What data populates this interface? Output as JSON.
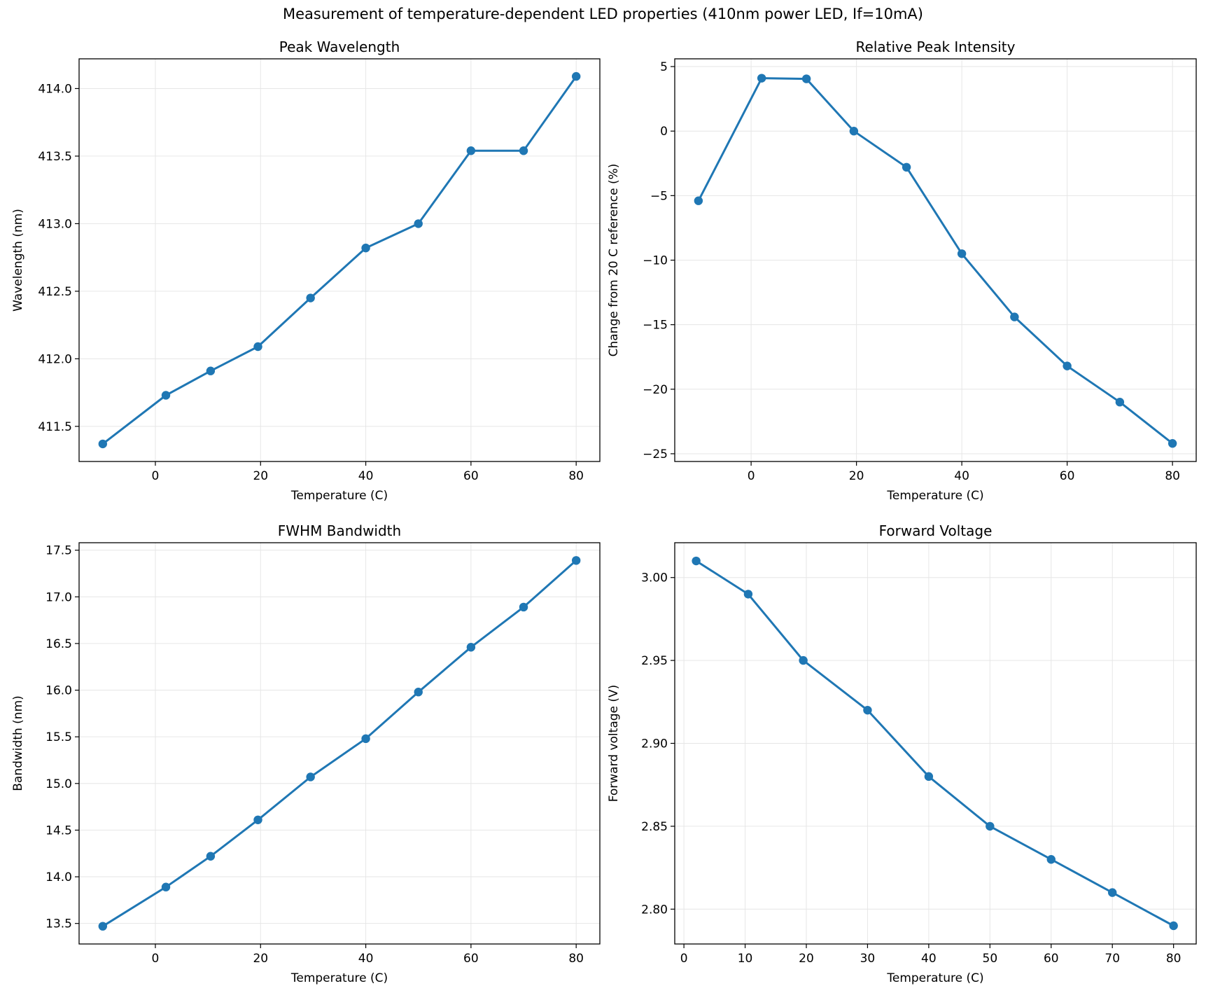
{
  "suptitle": "Measurement of temperature-dependent LED properties (410nm power LED, If=10mA)",
  "style": {
    "line_color": "#1f77b4",
    "grid_color": "#e6e6e6"
  },
  "chart_data": [
    {
      "id": "peak-wavelength",
      "type": "line",
      "title": "Peak Wavelength",
      "xlabel": "Temperature (C)",
      "ylabel": "Wavelength (nm)",
      "xlim": [
        -14.5,
        84.5
      ],
      "ylim": [
        411.24,
        414.22
      ],
      "xticks": [
        0,
        20,
        40,
        60,
        80
      ],
      "yticks": [
        411.5,
        412.0,
        412.5,
        413.0,
        413.5,
        414.0
      ],
      "ytick_labels": [
        "411.5",
        "412.0",
        "412.5",
        "413.0",
        "413.5",
        "414.0"
      ],
      "grid": true,
      "series": [
        {
          "x": [
            -10,
            2,
            10.5,
            19.5,
            29.5,
            40,
            50,
            60,
            70,
            80
          ],
          "y": [
            411.37,
            411.73,
            411.91,
            412.09,
            412.45,
            412.82,
            413.0,
            413.54,
            413.54,
            414.09
          ]
        }
      ]
    },
    {
      "id": "relative-peak-intensity",
      "type": "line",
      "title": "Relative Peak Intensity",
      "xlabel": "Temperature (C)",
      "ylabel": "Change from 20 C reference (%)",
      "xlim": [
        -14.5,
        84.5
      ],
      "ylim": [
        -25.6,
        5.6
      ],
      "xticks": [
        0,
        20,
        40,
        60,
        80
      ],
      "yticks": [
        -25,
        -20,
        -15,
        -10,
        -5,
        0,
        5
      ],
      "ytick_labels": [
        "−25",
        "−20",
        "−15",
        "−10",
        "−5",
        "0",
        "5"
      ],
      "grid": true,
      "series": [
        {
          "x": [
            -10,
            2,
            10.5,
            19.5,
            29.5,
            40,
            50,
            60,
            70,
            80
          ],
          "y": [
            -5.4,
            4.1,
            4.05,
            0.0,
            -2.8,
            -9.5,
            -14.4,
            -18.2,
            -21.0,
            -24.2
          ]
        }
      ]
    },
    {
      "id": "fwhm-bandwidth",
      "type": "line",
      "title": "FWHM Bandwidth",
      "xlabel": "Temperature (C)",
      "ylabel": "Bandwidth (nm)",
      "xlim": [
        -14.5,
        84.5
      ],
      "ylim": [
        13.28,
        17.58
      ],
      "xticks": [
        0,
        20,
        40,
        60,
        80
      ],
      "yticks": [
        13.5,
        14.0,
        14.5,
        15.0,
        15.5,
        16.0,
        16.5,
        17.0,
        17.5
      ],
      "ytick_labels": [
        "13.5",
        "14.0",
        "14.5",
        "15.0",
        "15.5",
        "16.0",
        "16.5",
        "17.0",
        "17.5"
      ],
      "grid": true,
      "series": [
        {
          "x": [
            -10,
            2,
            10.5,
            19.5,
            29.5,
            40,
            50,
            60,
            70,
            80
          ],
          "y": [
            13.47,
            13.89,
            14.22,
            14.61,
            15.07,
            15.48,
            15.98,
            16.46,
            16.89,
            17.39
          ]
        }
      ]
    },
    {
      "id": "forward-voltage",
      "type": "line",
      "title": "Forward Voltage",
      "xlabel": "Temperature (C)",
      "ylabel": "Forward voltage (V)",
      "xlim": [
        -1.5,
        83.7
      ],
      "ylim": [
        2.779,
        3.021
      ],
      "xticks": [
        0,
        10,
        20,
        30,
        40,
        50,
        60,
        70,
        80
      ],
      "yticks": [
        2.8,
        2.85,
        2.9,
        2.95,
        3.0
      ],
      "ytick_labels": [
        "2.80",
        "2.85",
        "2.90",
        "2.95",
        "3.00"
      ],
      "grid": true,
      "series": [
        {
          "x": [
            2,
            10.5,
            19.5,
            30,
            40,
            50,
            60,
            70,
            80
          ],
          "y": [
            3.01,
            2.99,
            2.95,
            2.92,
            2.88,
            2.85,
            2.83,
            2.81,
            2.79
          ]
        }
      ]
    }
  ]
}
